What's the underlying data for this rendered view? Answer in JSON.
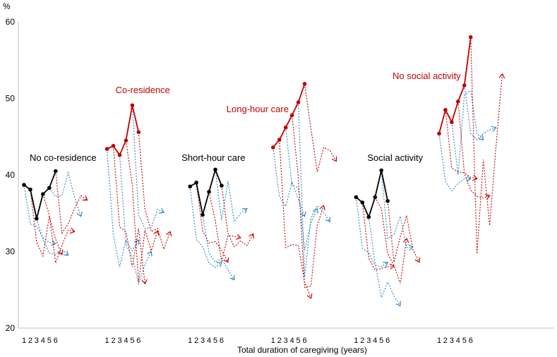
{
  "chart_data": {
    "type": "line",
    "ylabel": "%",
    "xlabel": "Total duration of caregiving (years)",
    "ylim": [
      20,
      60
    ],
    "yticks": [
      20,
      30,
      40,
      50,
      60
    ],
    "grid": false,
    "legend": "none",
    "colors": {
      "black": "#000000",
      "red": "#C00000",
      "blue": "#2E86C1",
      "axis": "#BFBFBF"
    },
    "groups": [
      {
        "label": "No co-residence",
        "label_color": "#000000",
        "x_ticks": [
          "1",
          "2",
          "3",
          "4",
          "5",
          "6"
        ],
        "main": {
          "color": "#000000",
          "values": [
            38.7,
            38.1,
            34.3,
            37.5,
            38.3,
            40.5
          ]
        },
        "trajectories": [
          {
            "color": "#2E86C1",
            "start": 1,
            "values": [
              38.7,
              33.6,
              33.3,
              31.8,
              31.2,
              31.0
            ]
          },
          {
            "color": "#C00000",
            "start": 2,
            "values": [
              38.1,
              31.2,
              29.4,
              34.6,
              31.6,
              29.6
            ]
          },
          {
            "color": "#2E86C1",
            "start": 3,
            "values": [
              34.3,
              31.6,
              29.8,
              29.6,
              30.2,
              29.5
            ]
          },
          {
            "color": "#C00000",
            "start": 4,
            "values": [
              37.5,
              34.8,
              28.5,
              30.8,
              32.8,
              32.6
            ]
          },
          {
            "color": "#2E86C1",
            "start": 5,
            "values": [
              38.3,
              37.2,
              37.3,
              40.3,
              37.1,
              34.6
            ]
          },
          {
            "color": "#C00000",
            "start": 6,
            "values": [
              40.5,
              32.4,
              33.6,
              35.6,
              37.3,
              36.7
            ]
          }
        ]
      },
      {
        "label": "Co-residence",
        "label_color": "#C00000",
        "x_ticks": [
          "1",
          "2",
          "3",
          "4",
          "5",
          "6"
        ],
        "main": {
          "color": "#C00000",
          "values": [
            43.4,
            43.8,
            42.6,
            44.5,
            49.1,
            45.6
          ]
        },
        "trajectories": [
          {
            "color": "#2E86C1",
            "start": 1,
            "values": [
              43.4,
              32.2,
              28.0,
              31.5,
              30.1,
              31.5
            ]
          },
          {
            "color": "#C00000",
            "start": 2,
            "values": [
              43.8,
              33.2,
              32.6,
              28.0,
              33.0,
              25.8
            ]
          },
          {
            "color": "#2E86C1",
            "start": 3,
            "values": [
              42.6,
              30.9,
              29.3,
              25.8,
              28.3,
              30.0
            ]
          },
          {
            "color": "#C00000",
            "start": 4,
            "values": [
              44.5,
              38.7,
              26.0,
              32.8,
              30.1,
              32.7
            ]
          },
          {
            "color": "#2E86C1",
            "start": 5,
            "values": [
              49.1,
              34.8,
              33.0,
              33.1,
              35.5,
              35.1
            ]
          },
          {
            "color": "#C00000",
            "start": 6,
            "values": [
              45.6,
              35.5,
              32.6,
              33.0,
              30.3,
              32.6
            ]
          }
        ]
      },
      {
        "label": "Short-hour care",
        "label_color": "#000000",
        "x_ticks": [
          "1",
          "2",
          "3",
          "4",
          "5",
          "6"
        ],
        "main": {
          "color": "#000000",
          "values": [
            38.5,
            39.0,
            34.8,
            37.8,
            40.7,
            38.6
          ]
        },
        "trajectories": [
          {
            "color": "#2E86C1",
            "start": 1,
            "values": [
              38.5,
              31.6,
              30.6,
              28.5,
              27.9,
              28.6
            ]
          },
          {
            "color": "#C00000",
            "start": 2,
            "values": [
              39.0,
              32.7,
              31.1,
              31.3,
              30.2,
              28.6
            ]
          },
          {
            "color": "#2E86C1",
            "start": 3,
            "values": [
              34.8,
              29.8,
              28.6,
              29.1,
              27.6,
              26.3
            ]
          },
          {
            "color": "#C00000",
            "start": 4,
            "values": [
              37.8,
              34.0,
              28.7,
              32.1,
              32.0,
              31.8
            ]
          },
          {
            "color": "#2E86C1",
            "start": 5,
            "values": [
              40.7,
              34.1,
              39.2,
              33.9,
              35.0,
              35.6
            ]
          },
          {
            "color": "#C00000",
            "start": 6,
            "values": [
              38.6,
              32.4,
              30.6,
              31.4,
              30.8,
              32.3
            ]
          }
        ]
      },
      {
        "label": "Long-hour care",
        "label_color": "#C00000",
        "x_ticks": [
          "1",
          "2",
          "3",
          "4",
          "5",
          "6"
        ],
        "main": {
          "color": "#C00000",
          "values": [
            43.6,
            44.6,
            46.2,
            47.8,
            49.5,
            51.9
          ]
        },
        "trajectories": [
          {
            "color": "#2E86C1",
            "start": 1,
            "values": [
              43.6,
              37.2,
              35.9,
              39.1,
              36.8,
              34.6
            ]
          },
          {
            "color": "#C00000",
            "start": 2,
            "values": [
              44.6,
              30.5,
              30.9,
              30.8,
              26.0,
              23.9
            ]
          },
          {
            "color": "#2E86C1",
            "start": 3,
            "values": [
              46.2,
              38.7,
              38.3,
              30.2,
              33.8,
              35.6
            ]
          },
          {
            "color": "#C00000",
            "start": 4,
            "values": [
              47.8,
              39.7,
              25.3,
              25.5,
              33.4,
              36.0
            ]
          },
          {
            "color": "#2E86C1",
            "start": 5,
            "values": [
              49.5,
              26.7,
              34.4,
              36.0,
              35.1,
              33.9
            ]
          },
          {
            "color": "#C00000",
            "start": 6,
            "values": [
              51.9,
              46.0,
              40.4,
              43.6,
              43.2,
              41.8
            ]
          }
        ]
      },
      {
        "label": "Social activity",
        "label_color": "#000000",
        "x_ticks": [
          "1",
          "2",
          "3",
          "4",
          "5",
          "6"
        ],
        "main": {
          "color": "#000000",
          "values": [
            37.1,
            36.4,
            34.5,
            37.1,
            40.6,
            36.6
          ]
        },
        "trajectories": [
          {
            "color": "#2E86C1",
            "start": 1,
            "values": [
              37.1,
              30.4,
              29.8,
              28.2,
              28.0,
              28.6
            ]
          },
          {
            "color": "#C00000",
            "start": 2,
            "values": [
              36.4,
              29.1,
              27.6,
              27.8,
              28.0,
              28.1
            ]
          },
          {
            "color": "#2E86C1",
            "start": 3,
            "values": [
              34.5,
              28.5,
              24.0,
              26.0,
              24.2,
              22.9
            ]
          },
          {
            "color": "#C00000",
            "start": 4,
            "values": [
              37.1,
              35.6,
              29.7,
              28.2,
              25.8,
              31.7
            ]
          },
          {
            "color": "#2E86C1",
            "start": 5,
            "values": [
              40.6,
              31.7,
              32.2,
              34.6,
              30.5,
              30.6
            ]
          },
          {
            "color": "#C00000",
            "start": 6,
            "values": [
              36.6,
              28.6,
              31.9,
              34.7,
              30.2,
              28.6
            ]
          }
        ]
      },
      {
        "label": "No social activity",
        "label_color": "#C00000",
        "x_ticks": [
          "1",
          "2",
          "3",
          "4",
          "5",
          "6"
        ],
        "main": {
          "color": "#C00000",
          "values": [
            45.4,
            48.5,
            46.9,
            49.6,
            51.7,
            58.0
          ]
        },
        "trajectories": [
          {
            "color": "#2E86C1",
            "start": 1,
            "values": [
              45.4,
              39.2,
              37.9,
              38.9,
              39.5,
              39.5
            ]
          },
          {
            "color": "#C00000",
            "start": 2,
            "values": [
              48.5,
              40.9,
              40.4,
              40.3,
              39.7,
              39.5
            ]
          },
          {
            "color": "#2E86C1",
            "start": 3,
            "values": [
              46.9,
              40.0,
              50.5,
              51.0,
              45.4,
              44.6
            ]
          },
          {
            "color": "#C00000",
            "start": 4,
            "values": [
              49.6,
              40.2,
              38.0,
              37.2,
              37.0,
              37.3
            ]
          },
          {
            "color": "#2E86C1",
            "start": 5,
            "values": [
              51.7,
              45.4,
              44.6,
              45.4,
              45.9,
              46.2
            ]
          },
          {
            "color": "#C00000",
            "start": 6,
            "values": [
              58.0,
              29.7,
              42.0,
              33.4,
              43.6,
              53.2
            ]
          }
        ]
      }
    ]
  }
}
